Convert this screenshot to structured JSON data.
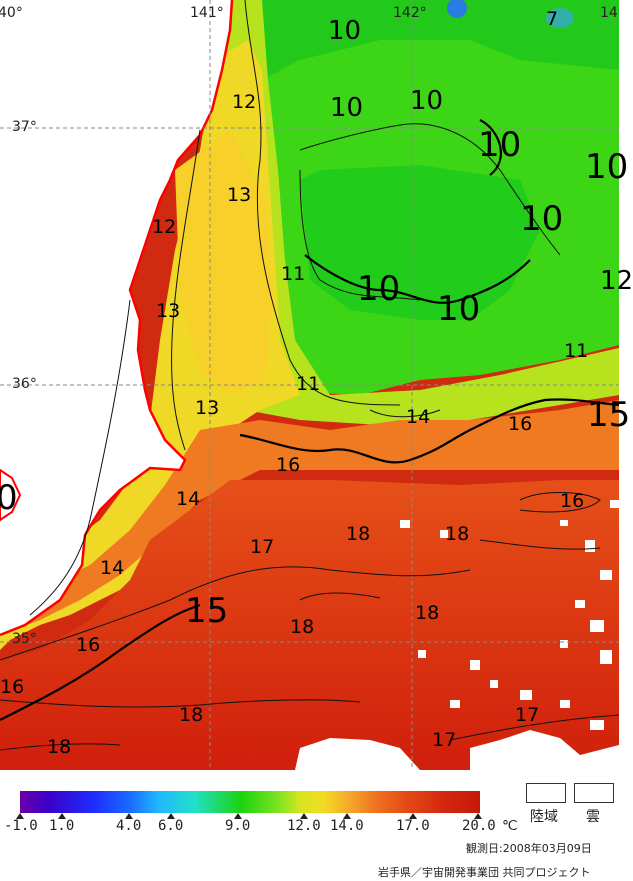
{
  "coords": {
    "lon_140": "40°",
    "lon_141": "141°",
    "lon_142": "142°",
    "lon_143": "14",
    "lat_37": "37°",
    "lat_36": "36°",
    "lat_35": "35°"
  },
  "isotherms": {
    "i10a": "10",
    "i10b": "10",
    "i10c": "10",
    "i10d": "10",
    "i10e": "10",
    "i10f": "10",
    "i10g": "10",
    "i10h": "10",
    "i7": "7",
    "i12a": "12",
    "i12b": "12",
    "i12c": "12",
    "i13a": "13",
    "i13b": "13",
    "i13c": "13",
    "i11a": "11",
    "i11b": "11",
    "i11c": "11",
    "i14a": "14",
    "i14b": "14",
    "i14c": "14",
    "i15a": "15",
    "i15b": "15",
    "i16a": "16",
    "i16b": "16",
    "i16c": "16",
    "i16d": "16",
    "i16e": "16",
    "i17a": "17",
    "i17b": "17",
    "i17c": "17",
    "i18a": "18",
    "i18b": "18",
    "i18c": "18",
    "i18d": "18",
    "i18e": "18",
    "i18f": "18",
    "i0": "0"
  },
  "colorbar": {
    "labels": [
      "-1.0",
      "1.0",
      "4.0",
      "6.0",
      "9.0",
      "12.0",
      "14.0",
      "17.0",
      "20.0"
    ],
    "unit": "℃"
  },
  "legend": {
    "land": "陸域",
    "cloud": "雲"
  },
  "footer": {
    "observation_date": "観測日:2008年03月09日",
    "credit": "岩手県／宇宙開発事業団 共同プロジェクト"
  },
  "colors": {
    "coast": "#ff0000",
    "land": "#ffffff",
    "warm_water": "#d42810",
    "mid_water": "#ef6e1f",
    "cool_water": "#f2dc24",
    "cold_water": "#1ad40f"
  }
}
